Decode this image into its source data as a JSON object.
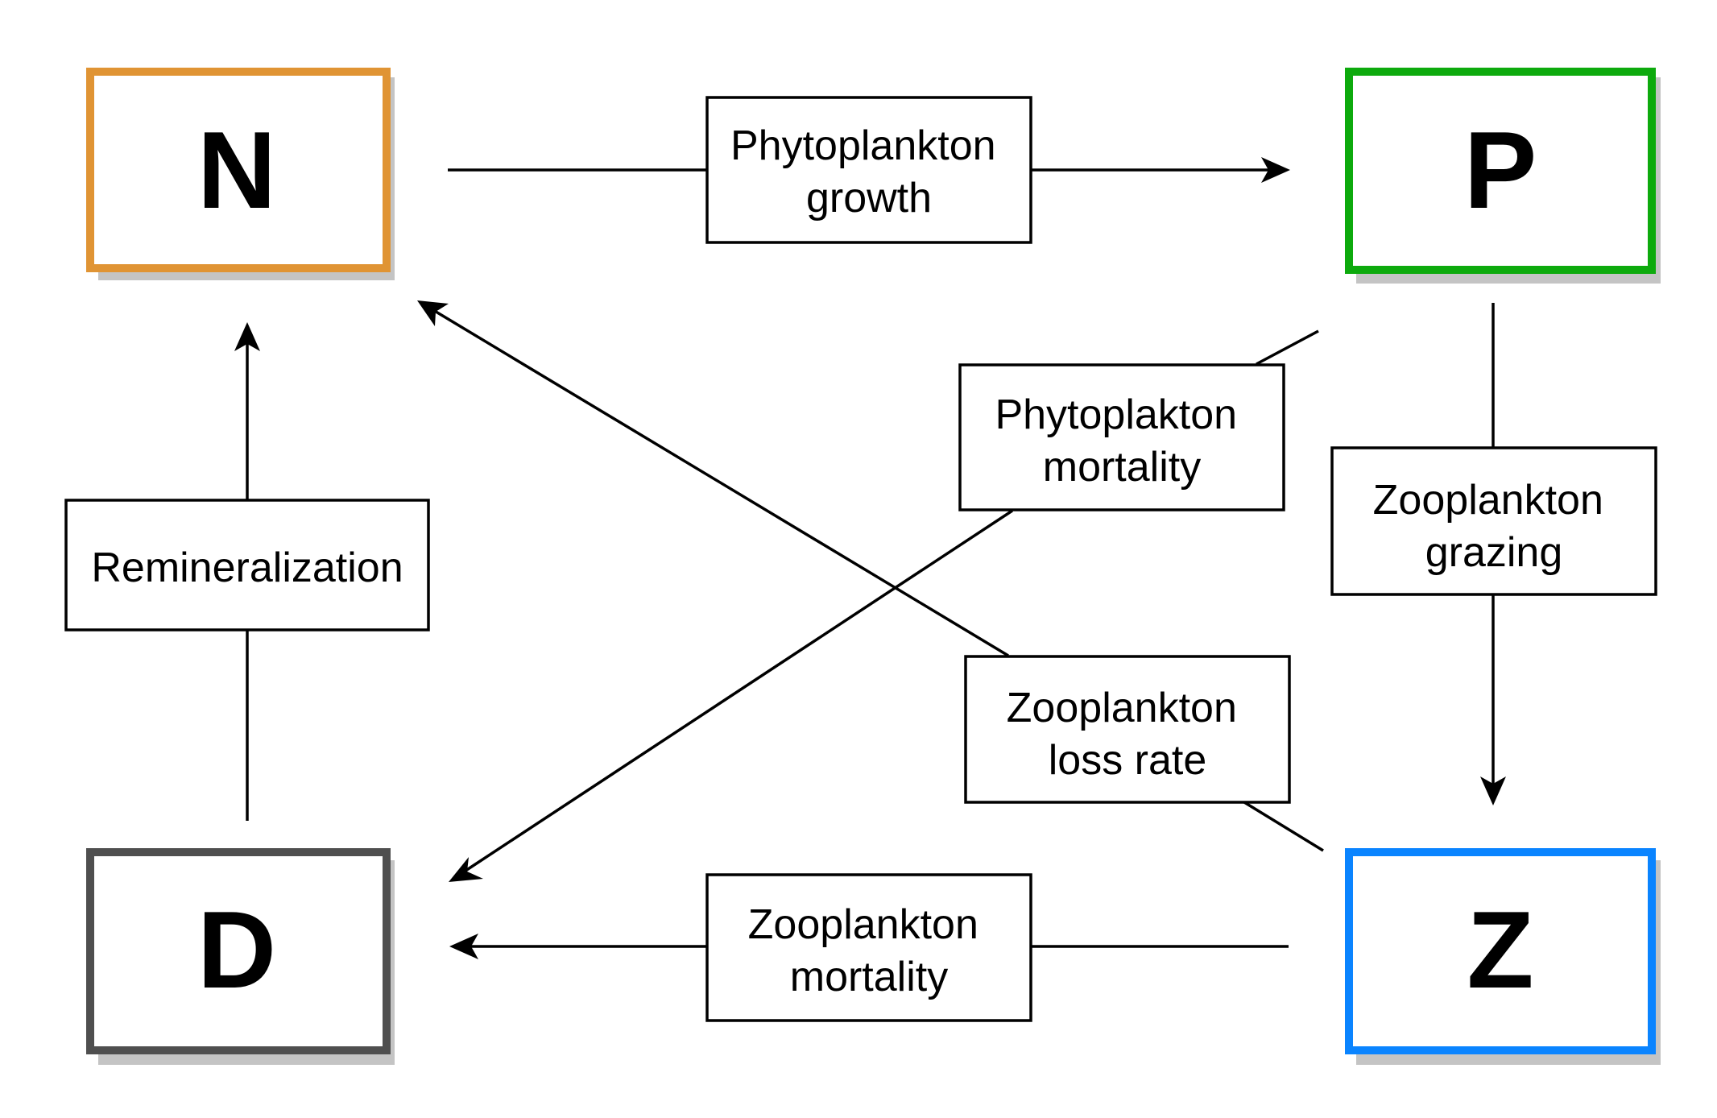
{
  "nodes": {
    "n": {
      "letter": "N",
      "color": "#E09434"
    },
    "p": {
      "letter": "P",
      "color": "#0DAA0D"
    },
    "d": {
      "letter": "D",
      "color": "#4F4F4F"
    },
    "z": {
      "letter": "Z",
      "color": "#0A84FF"
    }
  },
  "shadow_color": "#C4C4C4",
  "edge_color": "#000000",
  "labels": {
    "phyto_growth": [
      "Phytoplankton",
      "growth"
    ],
    "phyto_mortality": [
      "Phytoplakton",
      "mortality"
    ],
    "zoo_grazing": [
      "Zooplankton",
      "grazing"
    ],
    "remineralization": [
      "Remineralization"
    ],
    "zoo_loss_rate": [
      "Zooplankton",
      "loss rate"
    ],
    "zoo_mortality": [
      "Zooplankton",
      "mortality"
    ]
  },
  "edges": [
    {
      "from": "N",
      "to": "P",
      "label": "Phytoplankton growth"
    },
    {
      "from": "P",
      "to": "D",
      "label": "Phytoplakton mortality"
    },
    {
      "from": "P",
      "to": "Z",
      "label": "Zooplankton grazing"
    },
    {
      "from": "D",
      "to": "N",
      "label": "Remineralization"
    },
    {
      "from": "Z",
      "to": "N",
      "label": "Zooplankton loss rate"
    },
    {
      "from": "Z",
      "to": "D",
      "label": "Zooplankton mortality"
    }
  ]
}
